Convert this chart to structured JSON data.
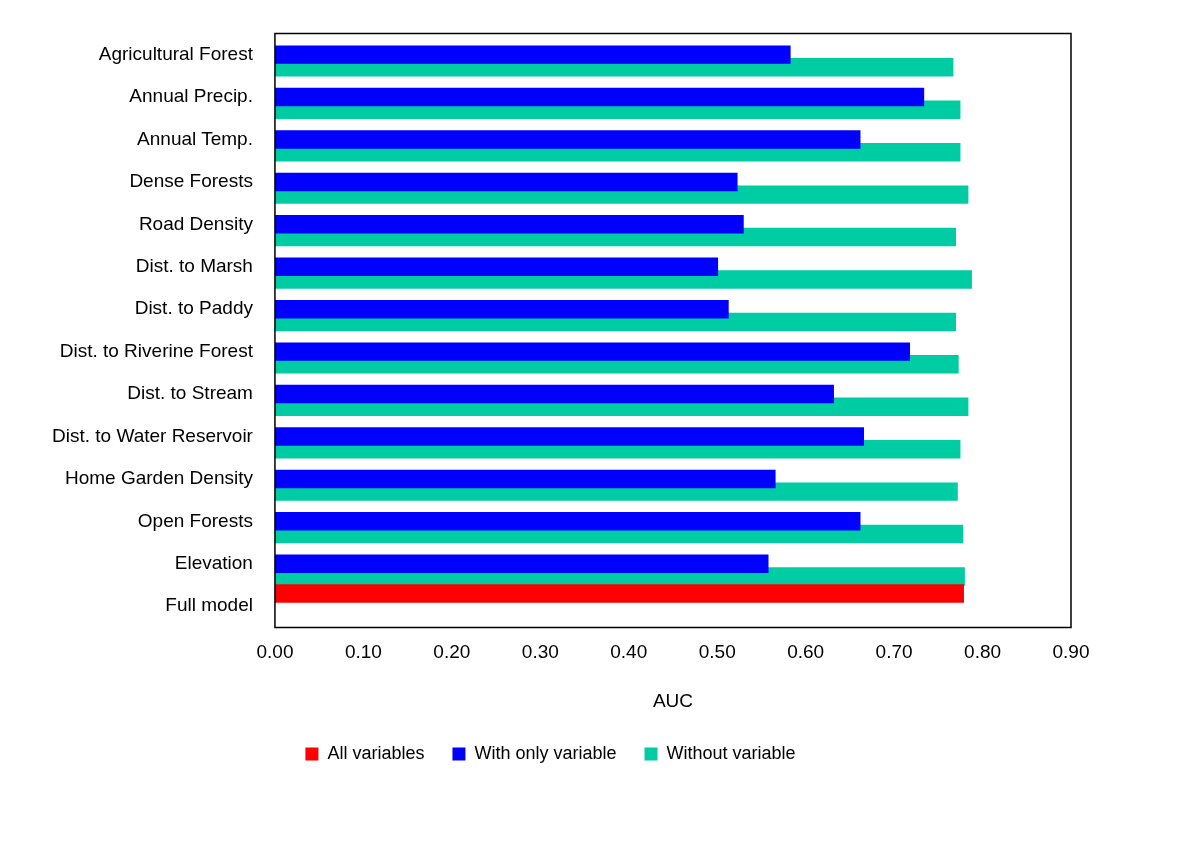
{
  "chart_data": {
    "type": "bar",
    "orientation": "horizontal",
    "xlabel": "AUC",
    "legend": "bottom",
    "grid": false,
    "categories": [
      "Agricultural Forest",
      "Annual Precip.",
      "Annual Temp.",
      "Dense Forests",
      "Road Density",
      "Dist. to Marsh",
      "Dist. to Paddy",
      "Dist. to Riverine Forest",
      "Dist. to Stream",
      "Dist. to Water Reservoir",
      "Home Garden Density",
      "Open Forests",
      "Elevation",
      "Full model"
    ],
    "series": [
      {
        "name": "All variables",
        "color": "#ff0000",
        "values": [
          null,
          null,
          null,
          null,
          null,
          null,
          null,
          null,
          null,
          null,
          null,
          null,
          null,
          0.779
        ]
      },
      {
        "name": "With only variable",
        "color": "#0000ff",
        "values": [
          0.583,
          0.734,
          0.662,
          0.523,
          0.53,
          0.501,
          0.513,
          0.718,
          0.632,
          0.666,
          0.566,
          0.662,
          0.558,
          null
        ]
      },
      {
        "name": "Without variable",
        "color": "#00cca4",
        "values": [
          0.767,
          0.775,
          0.775,
          0.784,
          0.77,
          0.788,
          0.77,
          0.773,
          0.784,
          0.775,
          0.772,
          0.778,
          0.78,
          null
        ]
      }
    ],
    "xlim": [
      0,
      0.9
    ],
    "xticks": [
      {
        "value": 0,
        "label": "0.00"
      },
      {
        "value": 0.1,
        "label": "0.10"
      },
      {
        "value": 0.2,
        "label": "0.20"
      },
      {
        "value": 0.3,
        "label": "0.30"
      },
      {
        "value": 0.4,
        "label": "0.40"
      },
      {
        "value": 0.5,
        "label": "0.50"
      },
      {
        "value": 0.6,
        "label": "0.60"
      },
      {
        "value": 0.7,
        "label": "0.70"
      },
      {
        "value": 0.8,
        "label": "0.80"
      },
      {
        "value": 0.9,
        "label": "0.90"
      }
    ]
  }
}
